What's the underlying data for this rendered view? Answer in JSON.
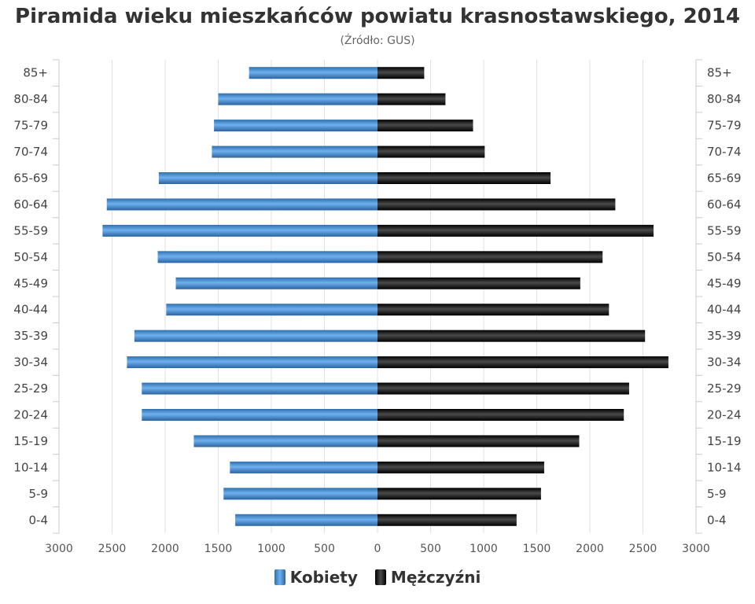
{
  "chart_data": {
    "type": "bar",
    "orientation": "horizontal-pyramid",
    "title": "Piramida wieku mieszkańców powiatu krasnostawskiego, 2014",
    "subtitle": "(Źródło: GUS)",
    "categories": [
      "85+",
      "80-84",
      "75-79",
      "70-74",
      "65-69",
      "60-64",
      "55-59",
      "50-54",
      "45-49",
      "40-44",
      "35-39",
      "30-34",
      "25-29",
      "20-24",
      "15-19",
      "10-14",
      "5-9",
      "0-4"
    ],
    "series": [
      {
        "name": "Kobiety",
        "side": "left",
        "color": "#4a8fd3",
        "values": [
          1210,
          1500,
          1540,
          1560,
          2060,
          2550,
          2590,
          2070,
          1900,
          1990,
          2290,
          2360,
          2220,
          2220,
          1730,
          1390,
          1450,
          1340
        ]
      },
      {
        "name": "Mężczyźni",
        "side": "right",
        "color": "#1a1a1a",
        "values": [
          440,
          640,
          900,
          1010,
          1630,
          2240,
          2600,
          2120,
          1910,
          2180,
          2520,
          2740,
          2370,
          2320,
          1900,
          1570,
          1540,
          1310
        ]
      }
    ],
    "xlim": [
      -3000,
      3000
    ],
    "xticks": [
      "3000",
      "2500",
      "2000",
      "1500",
      "1000",
      "500",
      "0",
      "500",
      "1000",
      "1500",
      "2000",
      "2500",
      "3000"
    ],
    "grid": true,
    "legend_position": "bottom"
  }
}
